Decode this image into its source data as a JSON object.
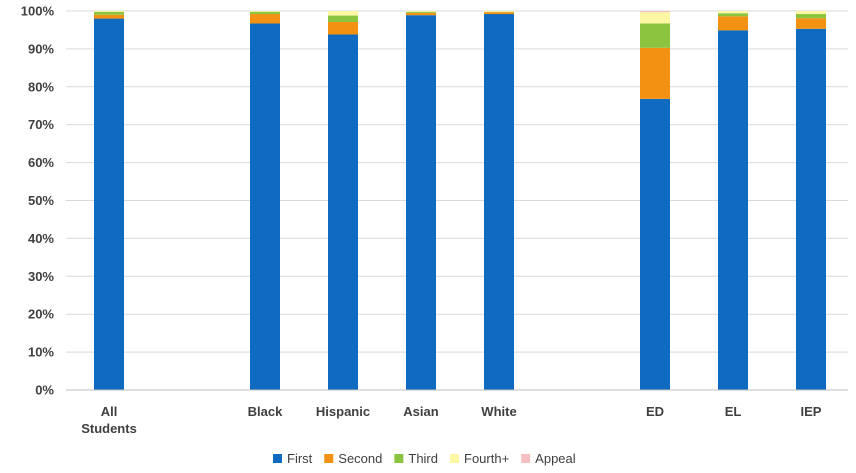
{
  "chart_data": {
    "type": "bar",
    "stacked": true,
    "categories": [
      "All Students",
      "",
      "Black",
      "Hispanic",
      "Asian",
      "White",
      "",
      "ED",
      "EL",
      "IEP"
    ],
    "category_lines": [
      [
        "All",
        "Students"
      ],
      [],
      [
        "Black"
      ],
      [
        "Hispanic"
      ],
      [
        "Asian"
      ],
      [
        "White"
      ],
      [],
      [
        "ED"
      ],
      [
        "EL"
      ],
      [
        "IEP"
      ]
    ],
    "series": [
      {
        "name": "First",
        "color": "#0f6bbf",
        "values": [
          98.0,
          null,
          96.7,
          93.8,
          98.9,
          99.2,
          null,
          76.8,
          94.9,
          95.3
        ]
      },
      {
        "name": "Second",
        "color": "#f39212",
        "values": [
          1.0,
          null,
          2.5,
          3.3,
          0.6,
          0.5,
          null,
          13.5,
          3.7,
          2.8
        ]
      },
      {
        "name": "Third",
        "color": "#8bc540",
        "values": [
          0.8,
          null,
          0.6,
          1.7,
          0.3,
          0.1,
          null,
          6.4,
          0.8,
          1.1
        ]
      },
      {
        "name": "Fourth+",
        "color": "#fdf7a3",
        "values": [
          0.2,
          null,
          0.2,
          1.2,
          0.2,
          0.2,
          null,
          3.0,
          0.6,
          0.8
        ]
      },
      {
        "name": "Appeal",
        "color": "#f6c0c0",
        "values": [
          0.0,
          null,
          0.0,
          0.0,
          0.0,
          0.0,
          null,
          0.3,
          0.0,
          0.0
        ]
      }
    ],
    "ylim": [
      0,
      100
    ],
    "yticks": [
      "0%",
      "10%",
      "20%",
      "30%",
      "40%",
      "50%",
      "60%",
      "70%",
      "80%",
      "90%",
      "100%"
    ],
    "grid": true,
    "legend_position": "bottom",
    "title": "",
    "xlabel": "",
    "ylabel": ""
  }
}
